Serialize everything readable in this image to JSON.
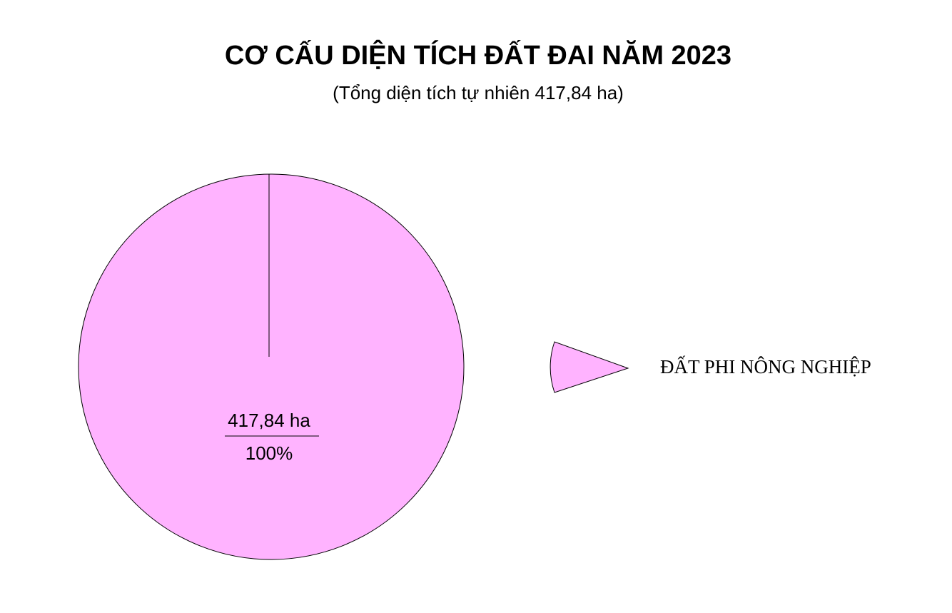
{
  "chart_data": {
    "type": "pie",
    "title": "CƠ CẤU DIỆN TÍCH ĐẤT ĐAI NĂM 2023",
    "subtitle": "(Tổng diện tích tự nhiên 417,84 ha)",
    "categories": [
      "ĐẤT PHI NÔNG NGHIỆP"
    ],
    "values": [
      417.84
    ],
    "value_labels": [
      "417,84 ha"
    ],
    "percents": [
      100
    ],
    "percent_labels": [
      "100%"
    ],
    "colors": [
      "#ffb3ff"
    ],
    "legend": "right"
  }
}
